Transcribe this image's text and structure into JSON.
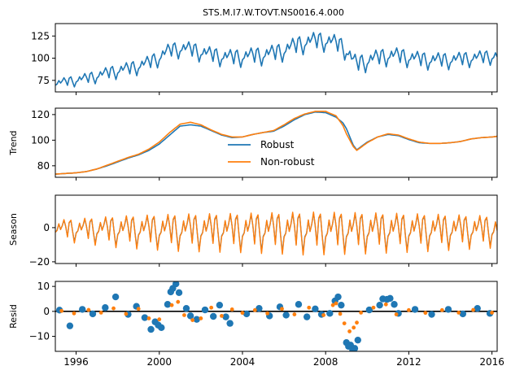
{
  "figure": {
    "title": "STS.M.I7.W.TOVT.NS0016.4.000"
  },
  "colors": {
    "robust": "#1f77b4",
    "non_robust": "#ff7f0e",
    "zero_line": "#000000",
    "axes": "#000000"
  },
  "chart_data": [
    {
      "type": "line",
      "panel": "observed",
      "ylabel": "",
      "xlim": [
        1995.0,
        2016.25
      ],
      "ylim": [
        62,
        139
      ],
      "yticks": [
        75,
        100,
        125
      ],
      "xticks": [
        1996,
        2000,
        2004,
        2008,
        2012,
        2016
      ],
      "show_xtick_labels": false,
      "series": [
        {
          "color_key": "robust",
          "x": [
            1995.0,
            1995.5,
            1996.0,
            1996.5,
            1997.0,
            1997.5,
            1998.0,
            1998.5,
            1999.0,
            1999.5,
            2000.0,
            2000.5,
            2001.0,
            2001.5,
            2002.0,
            2002.5,
            2003.0,
            2003.5,
            2004.0,
            2004.5,
            2005.0,
            2005.5,
            2006.0,
            2006.5,
            2007.0,
            2007.5,
            2008.0,
            2008.5,
            2008.83,
            2009.0,
            2009.33,
            2009.5,
            2010.0,
            2010.5,
            2011.0,
            2011.5,
            2012.0,
            2012.5,
            2013.0,
            2013.5,
            2014.0,
            2014.5,
            2015.0,
            2015.5,
            2016.0,
            2016.25
          ],
          "y": [
            72,
            74,
            76,
            78,
            81,
            84,
            87,
            89,
            92,
            96,
            102,
            110,
            112,
            111,
            108,
            105,
            103,
            102,
            103,
            104,
            105,
            107,
            110,
            115,
            119,
            121,
            121,
            118,
            114,
            110,
            98,
            95,
            98,
            102,
            104,
            104,
            102,
            100,
            99,
            99,
            99,
            100,
            101,
            102,
            103,
            103
          ]
        }
      ]
    },
    {
      "type": "line",
      "panel": "trend",
      "ylabel": "Trend",
      "xlim": [
        1995.0,
        2016.25
      ],
      "ylim": [
        71,
        125
      ],
      "yticks": [
        80,
        100,
        120
      ],
      "xticks": [
        1996,
        2000,
        2004,
        2008,
        2012,
        2016
      ],
      "show_xtick_labels": false,
      "legend": {
        "position": "center",
        "entries": [
          "Robust",
          "Non-robust"
        ]
      },
      "series": [
        {
          "name": "Robust",
          "color_key": "robust",
          "x": [
            1995.0,
            1995.5,
            1996.0,
            1996.5,
            1997.0,
            1997.5,
            1998.0,
            1998.5,
            1999.0,
            1999.5,
            2000.0,
            2000.5,
            2001.0,
            2001.5,
            2002.0,
            2002.5,
            2003.0,
            2003.5,
            2004.0,
            2004.5,
            2005.0,
            2005.5,
            2006.0,
            2006.5,
            2007.0,
            2007.5,
            2008.0,
            2008.5,
            2008.83,
            2009.0,
            2009.33,
            2009.5,
            2010.0,
            2010.5,
            2011.0,
            2011.5,
            2012.0,
            2012.5,
            2013.0,
            2013.5,
            2014.0,
            2014.5,
            2015.0,
            2015.5,
            2016.0,
            2016.25
          ],
          "y": [
            73.5,
            74,
            74.5,
            75.5,
            77.5,
            80,
            83,
            86,
            88.5,
            92,
            97,
            104,
            111,
            112,
            111,
            107.5,
            104,
            102,
            102.5,
            104.5,
            106,
            107,
            111,
            116,
            120,
            122,
            121.5,
            118,
            113.5,
            109,
            96,
            92.5,
            98.5,
            102.5,
            104.5,
            103.5,
            100.5,
            98,
            97.5,
            97.5,
            98,
            99,
            101,
            102,
            102.5,
            103
          ]
        },
        {
          "name": "Non-robust",
          "color_key": "non_robust",
          "x": [
            1995.0,
            1995.5,
            1996.0,
            1996.5,
            1997.0,
            1997.5,
            1998.0,
            1998.5,
            1999.0,
            1999.5,
            2000.0,
            2000.5,
            2001.0,
            2001.5,
            2002.0,
            2002.5,
            2003.0,
            2003.5,
            2004.0,
            2004.5,
            2005.0,
            2005.5,
            2006.0,
            2006.5,
            2007.0,
            2007.5,
            2008.0,
            2008.5,
            2008.83,
            2009.0,
            2009.33,
            2009.5,
            2010.0,
            2010.5,
            2011.0,
            2011.5,
            2012.0,
            2012.5,
            2013.0,
            2013.5,
            2014.0,
            2014.5,
            2015.0,
            2015.5,
            2016.0,
            2016.25
          ],
          "y": [
            73.5,
            74,
            74.5,
            75.5,
            77.5,
            80.5,
            83.5,
            86.5,
            89,
            93,
            98.5,
            106,
            112.5,
            114,
            112,
            108,
            104.5,
            102.5,
            102.5,
            104.5,
            106,
            107.5,
            112,
            117,
            120.5,
            122.5,
            122.5,
            119,
            111.5,
            105,
            95,
            92,
            98,
            102.5,
            105,
            104,
            101,
            98.5,
            97.5,
            97.5,
            98,
            99,
            101,
            102,
            102.5,
            103
          ]
        }
      ]
    },
    {
      "type": "line",
      "panel": "season",
      "ylabel": "Season",
      "xlim": [
        1995.0,
        2016.25
      ],
      "ylim": [
        -21,
        19
      ],
      "yticks": [
        -20,
        0
      ],
      "xticks": [
        1996,
        2000,
        2004,
        2008,
        2012,
        2016
      ],
      "show_xtick_labels": false,
      "seasonal_pattern": [
        -5,
        -3,
        4,
        -2,
        2,
        8,
        1,
        -9,
        5,
        7,
        -4,
        -14
      ],
      "amplitude": {
        "x": [
          1995.0,
          1998.0,
          2001.0,
          2004.0,
          2007.0,
          2010.0,
          2013.0,
          2016.25
        ],
        "y": [
          0.55,
          0.85,
          1.0,
          1.05,
          1.15,
          1.1,
          1.0,
          0.85
        ]
      },
      "series": [
        {
          "name": "Robust",
          "color_key": "robust"
        },
        {
          "name": "Non-robust",
          "color_key": "non_robust"
        }
      ]
    },
    {
      "type": "scatter",
      "panel": "resid",
      "ylabel": "Resid",
      "xlim": [
        1995.0,
        2016.25
      ],
      "ylim": [
        -16,
        12
      ],
      "yticks": [
        -10,
        0,
        10
      ],
      "xticks": [
        1996,
        2000,
        2004,
        2008,
        2012,
        2016
      ],
      "xticklabels": [
        "1996",
        "2000",
        "2004",
        "2008",
        "2012",
        "2016"
      ],
      "zero_line": true,
      "series": [
        {
          "name": "Robust",
          "color_key": "robust",
          "marker_size": 4.2,
          "points": [
            [
              1995.2,
              0.5
            ],
            [
              1995.7,
              -5.8
            ],
            [
              1996.3,
              0.8
            ],
            [
              1996.8,
              -1
            ],
            [
              1997.4,
              1.5
            ],
            [
              1997.9,
              5.8
            ],
            [
              1998.5,
              -1.2
            ],
            [
              1998.9,
              2
            ],
            [
              1999.3,
              -2.5
            ],
            [
              1999.6,
              -7.2
            ],
            [
              1999.8,
              -4.2
            ],
            [
              1999.95,
              -5.5
            ],
            [
              2000.1,
              -6.5
            ],
            [
              2000.4,
              2.8
            ],
            [
              2000.55,
              7.8
            ],
            [
              2000.65,
              9.2
            ],
            [
              2000.8,
              11
            ],
            [
              2000.95,
              7.5
            ],
            [
              2001.3,
              1.2
            ],
            [
              2001.5,
              -1.8
            ],
            [
              2001.8,
              -3.2
            ],
            [
              2002.2,
              0.6
            ],
            [
              2002.6,
              -2
            ],
            [
              2002.9,
              2.5
            ],
            [
              2003.2,
              -2.2
            ],
            [
              2003.4,
              -4.8
            ],
            [
              2004.2,
              -1
            ],
            [
              2004.8,
              1.2
            ],
            [
              2005.3,
              -1.8
            ],
            [
              2005.8,
              1.8
            ],
            [
              2006.1,
              -1.5
            ],
            [
              2006.7,
              2.8
            ],
            [
              2007.1,
              -2.2
            ],
            [
              2007.5,
              1
            ],
            [
              2007.8,
              -1.2
            ],
            [
              2008.2,
              -0.8
            ],
            [
              2008.45,
              4.2
            ],
            [
              2008.6,
              5.8
            ],
            [
              2008.75,
              2.5
            ],
            [
              2009.0,
              -12.5
            ],
            [
              2009.1,
              -14
            ],
            [
              2009.2,
              -13.5
            ],
            [
              2009.3,
              -15.5
            ],
            [
              2009.4,
              -14.8
            ],
            [
              2009.55,
              -11.5
            ],
            [
              2010.1,
              0.6
            ],
            [
              2010.6,
              2.5
            ],
            [
              2010.75,
              5
            ],
            [
              2010.95,
              4.8
            ],
            [
              2011.1,
              5.2
            ],
            [
              2011.3,
              2.8
            ],
            [
              2011.5,
              -0.8
            ],
            [
              2012.3,
              0.8
            ],
            [
              2013.1,
              -1.2
            ],
            [
              2013.9,
              0.8
            ],
            [
              2014.6,
              -1
            ],
            [
              2015.3,
              1.2
            ],
            [
              2015.9,
              -0.8
            ]
          ]
        },
        {
          "name": "Non-robust",
          "color_key": "non_robust",
          "marker_size": 2.4,
          "points": [
            [
              1995.3,
              0.2
            ],
            [
              1995.9,
              -0.8
            ],
            [
              1996.6,
              0.6
            ],
            [
              1997.2,
              -0.5
            ],
            [
              1997.8,
              1.2
            ],
            [
              1998.4,
              -1
            ],
            [
              1999.0,
              1
            ],
            [
              1999.5,
              -2.8
            ],
            [
              2000.0,
              -3.2
            ],
            [
              2000.6,
              2.5
            ],
            [
              2000.9,
              3.8
            ],
            [
              2001.2,
              -1.5
            ],
            [
              2001.6,
              -3.5
            ],
            [
              2002.0,
              -2.8
            ],
            [
              2002.5,
              1.5
            ],
            [
              2003.0,
              -1.8
            ],
            [
              2003.5,
              0.8
            ],
            [
              2004.0,
              -0.6
            ],
            [
              2004.6,
              0.5
            ],
            [
              2005.2,
              -0.8
            ],
            [
              2005.9,
              1
            ],
            [
              2006.5,
              -1.2
            ],
            [
              2007.2,
              1.5
            ],
            [
              2007.9,
              -1.5
            ],
            [
              2008.35,
              2.5
            ],
            [
              2008.5,
              3.2
            ],
            [
              2008.7,
              -1
            ],
            [
              2008.9,
              -4.8
            ],
            [
              2009.15,
              -8
            ],
            [
              2009.35,
              -6.5
            ],
            [
              2009.5,
              -4.5
            ],
            [
              2009.7,
              -0.5
            ],
            [
              2010.3,
              1.5
            ],
            [
              2010.9,
              2.8
            ],
            [
              2011.4,
              -1.2
            ],
            [
              2012.0,
              0.5
            ],
            [
              2012.8,
              -0.6
            ],
            [
              2013.6,
              0.5
            ],
            [
              2014.4,
              -0.5
            ],
            [
              2015.1,
              0.6
            ],
            [
              2016.0,
              -0.5
            ]
          ]
        }
      ]
    }
  ]
}
